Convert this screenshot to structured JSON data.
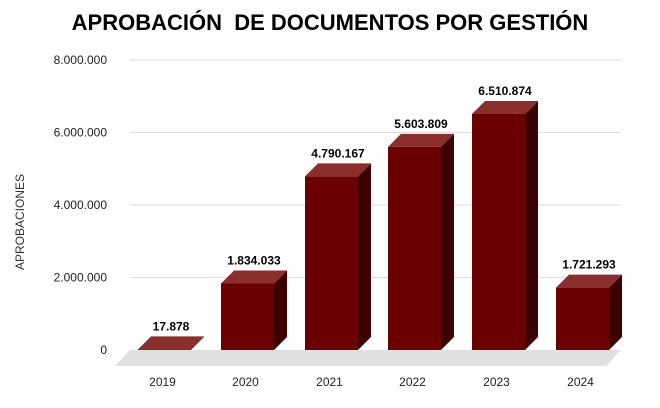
{
  "chart_data": {
    "type": "bar",
    "title": "APROBACIÓN  DE DOCUMENTOS POR GESTIÓN",
    "xlabel": "",
    "ylabel": "APROBACIONES",
    "ylim": [
      0,
      8000000
    ],
    "yticks": [
      "0",
      "2.000.000",
      "4.000.000",
      "6.000.000",
      "8.000.000"
    ],
    "ytick_values": [
      0,
      2000000,
      4000000,
      6000000,
      8000000
    ],
    "categories": [
      "2019",
      "2020",
      "2021",
      "2022",
      "2023",
      "2024"
    ],
    "values": [
      17878,
      1834033,
      4790167,
      5603809,
      6510874,
      1721293
    ],
    "data_labels": [
      "17.878",
      "1.834.033",
      "4.790.167",
      "5.603.809",
      "6.510.874",
      "1.721.293"
    ],
    "grid": true,
    "legend": "none",
    "colors": {
      "bar_front": "#6b0000",
      "bar_top": "#8a2e2e",
      "bar_side": "#3d0000",
      "floor": "#e0e0e0"
    }
  }
}
